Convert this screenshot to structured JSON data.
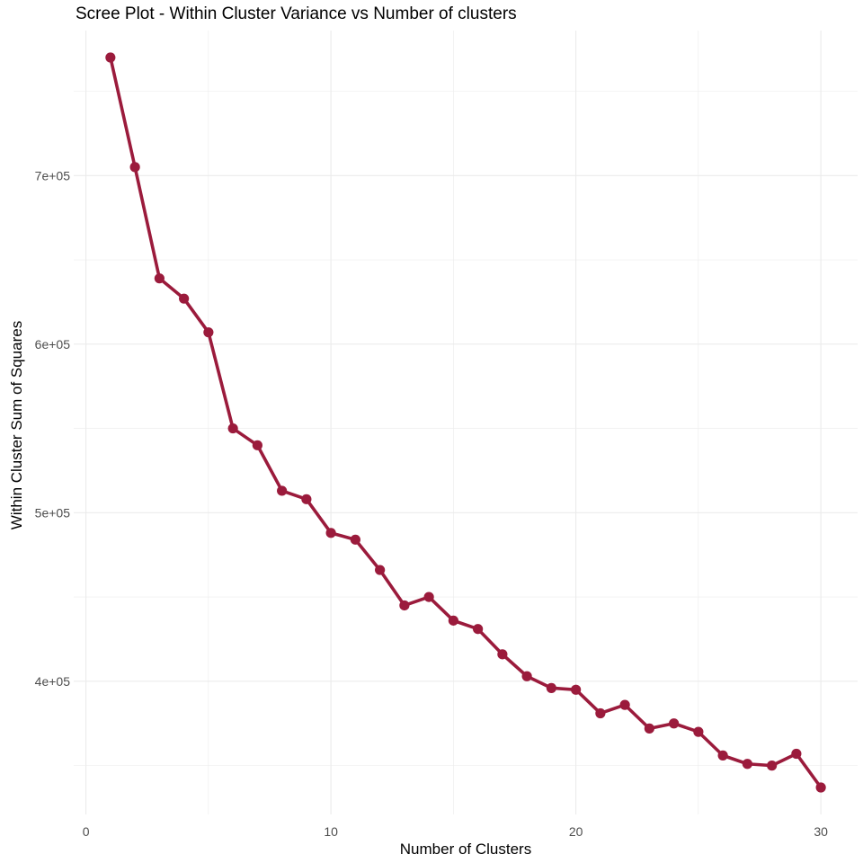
{
  "chart_data": {
    "type": "line",
    "title": "Scree Plot - Within Cluster Variance vs Number of clusters",
    "xlabel": "Number of Clusters",
    "ylabel": "Within Cluster Sum of Squares",
    "x": [
      1,
      2,
      3,
      4,
      5,
      6,
      7,
      8,
      9,
      10,
      11,
      12,
      13,
      14,
      15,
      16,
      17,
      18,
      19,
      20,
      21,
      22,
      23,
      24,
      25,
      26,
      27,
      28,
      29,
      30
    ],
    "series": [
      {
        "values": [
          770000,
          705000,
          639000,
          627000,
          607000,
          550000,
          540000,
          513000,
          508000,
          488000,
          484000,
          466000,
          445000,
          450000,
          436000,
          431000,
          416000,
          403000,
          396000,
          395000,
          381000,
          386000,
          372000,
          375000,
          370000,
          356000,
          351000,
          350000,
          357000,
          337000
        ]
      }
    ],
    "xlim": [
      -0.5,
      31.5
    ],
    "ylim": [
      321000,
      786000
    ],
    "x_ticks": [
      0,
      10,
      20,
      30
    ],
    "x_tick_labels": [
      "0",
      "10",
      "20",
      "30"
    ],
    "y_ticks": [
      400000,
      500000,
      600000,
      700000
    ],
    "y_tick_labels": [
      "4e+05",
      "5e+05",
      "6e+05",
      "7e+05"
    ],
    "grid": true,
    "legend": "none",
    "colors": {
      "series": "#9b1b3c",
      "grid": "#ebebeb",
      "tick_text": "#4d4d4d"
    }
  }
}
